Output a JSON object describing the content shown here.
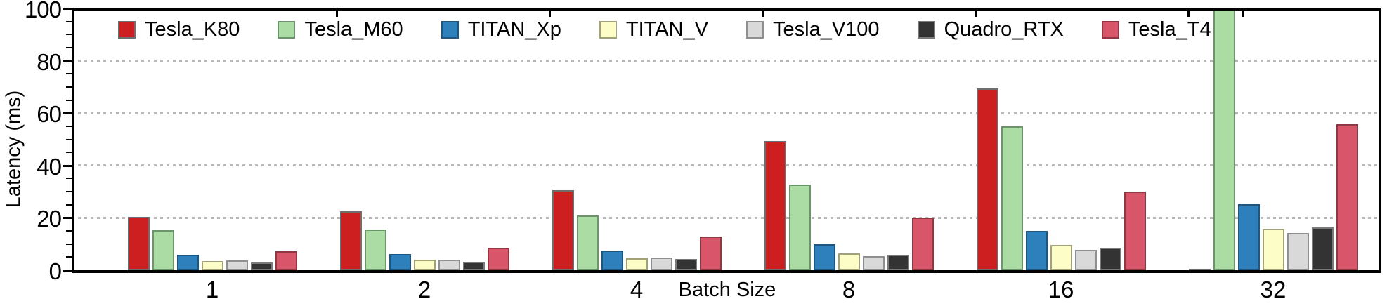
{
  "chart_data": {
    "type": "bar",
    "title": "",
    "xlabel": "Batch Size",
    "ylabel": "Latency (ms)",
    "categories": [
      "1",
      "2",
      "4",
      "8",
      "16",
      "32"
    ],
    "series": [
      {
        "name": "Tesla_K80",
        "color": "#cd1f1f",
        "border": "#6e6e6e",
        "values": [
          20.4,
          22.4,
          30.6,
          49.2,
          69.5,
          0.4
        ]
      },
      {
        "name": "Tesla_M60",
        "color": "#abdca4",
        "border": "#6d936d",
        "values": [
          15.2,
          15.6,
          21.0,
          32.8,
          55.0,
          100
        ]
      },
      {
        "name": "TITAN_Xp",
        "color": "#2e80bc",
        "border": "#1d5680",
        "values": [
          5.9,
          6.3,
          7.6,
          10.0,
          14.9,
          25.2
        ]
      },
      {
        "name": "TITAN_V",
        "color": "#fdfdc8",
        "border": "#a2a279",
        "values": [
          3.6,
          3.9,
          4.5,
          6.4,
          9.7,
          15.7
        ]
      },
      {
        "name": "Tesla_V100",
        "color": "#d9d9d9",
        "border": "#8f8f8f",
        "values": [
          3.8,
          4.1,
          4.8,
          5.3,
          7.8,
          14.3
        ]
      },
      {
        "name": "Quadro_RTX",
        "color": "#333333",
        "border": "#7a7a7a",
        "values": [
          2.9,
          3.2,
          4.2,
          5.9,
          8.6,
          16.3
        ]
      },
      {
        "name": "Tesla_T4",
        "color": "#d9566a",
        "border": "#8f3743",
        "values": [
          7.3,
          8.6,
          12.9,
          20.2,
          30.1,
          55.7
        ]
      }
    ],
    "ylim": [
      0,
      100
    ],
    "yticks": [
      0,
      20,
      40,
      60,
      80,
      100
    ],
    "grid": "horizontal dotted gray at 20,40,60,80",
    "legend_position": "top inside plot",
    "annotations": [
      "Tesla_M60 bar at batch size 32 is clipped at the top of the axis (>= 100 ms)"
    ]
  }
}
